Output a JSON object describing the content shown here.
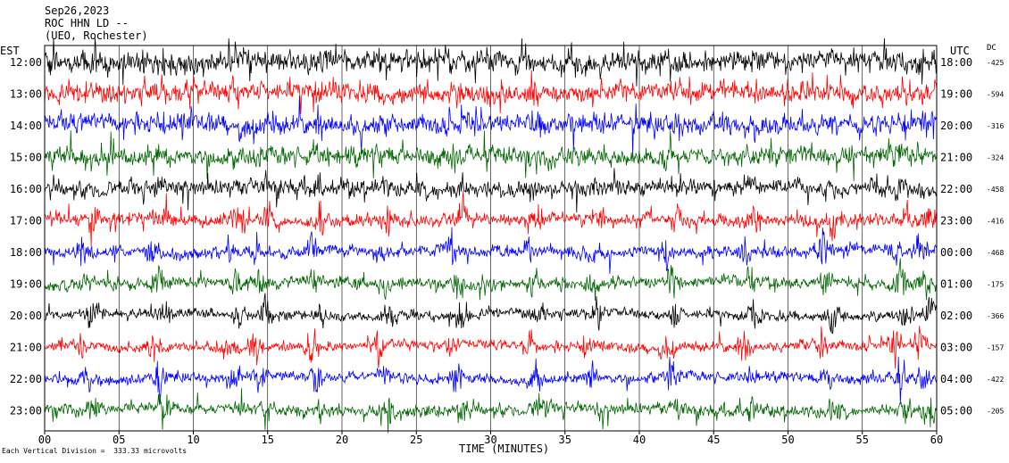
{
  "header": {
    "date": "Sep26,2023",
    "station": "ROC HHN LD --",
    "network": "(UEO, Rochester)"
  },
  "corners": {
    "left_timezone": "EST",
    "right_timezone": "UTC",
    "dc_label": "DC"
  },
  "footnote": "Each Vertical Division =  333.33 microvolts",
  "chart_data": {
    "type": "line",
    "title": "",
    "xlabel": "TIME (MINUTES)",
    "ylabel": "",
    "xlim": [
      0,
      60
    ],
    "x_ticks": [
      "00",
      "05",
      "10",
      "15",
      "20",
      "25",
      "30",
      "35",
      "40",
      "45",
      "50",
      "55",
      "60"
    ],
    "grid": true,
    "series": [
      {
        "left_label": "12:00",
        "right_label": "18:00",
        "dc_offset": "-425",
        "color": "#000000",
        "activity": 1.6
      },
      {
        "left_label": "13:00",
        "right_label": "19:00",
        "dc_offset": "-594",
        "color": "#ff0000",
        "activity": 1.5
      },
      {
        "left_label": "14:00",
        "right_label": "20:00",
        "dc_offset": "-316",
        "color": "#0000ff",
        "activity": 1.5
      },
      {
        "left_label": "15:00",
        "right_label": "21:00",
        "dc_offset": "-324",
        "color": "#006600",
        "activity": 1.4
      },
      {
        "left_label": "16:00",
        "right_label": "22:00",
        "dc_offset": "-458",
        "color": "#000000",
        "activity": 1.2
      },
      {
        "left_label": "17:00",
        "right_label": "23:00",
        "dc_offset": "-416",
        "color": "#ff0000",
        "activity": 1.0
      },
      {
        "left_label": "18:00",
        "right_label": "00:00",
        "dc_offset": "-468",
        "color": "#0000ff",
        "activity": 0.9
      },
      {
        "left_label": "19:00",
        "right_label": "01:00",
        "dc_offset": "-175",
        "color": "#006600",
        "activity": 0.9
      },
      {
        "left_label": "20:00",
        "right_label": "02:00",
        "dc_offset": "-366",
        "color": "#000000",
        "activity": 0.8
      },
      {
        "left_label": "21:00",
        "right_label": "03:00",
        "dc_offset": "-157",
        "color": "#ff0000",
        "activity": 0.8
      },
      {
        "left_label": "22:00",
        "right_label": "04:00",
        "dc_offset": "-422",
        "color": "#0000ff",
        "activity": 0.8
      },
      {
        "left_label": "23:00",
        "right_label": "05:00",
        "dc_offset": "-205",
        "color": "#006600",
        "activity": 0.9
      }
    ]
  }
}
